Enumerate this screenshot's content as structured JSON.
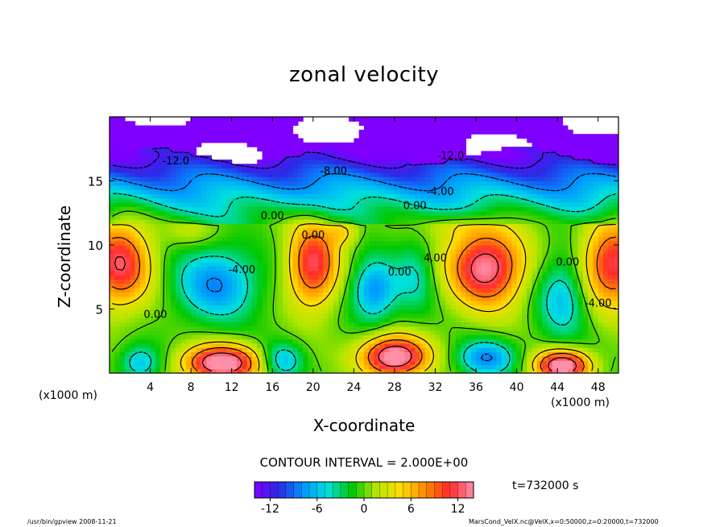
{
  "chart_data": {
    "type": "heatmap",
    "title": "zonal velocity",
    "xlabel": "X-coordinate",
    "ylabel": "Z-coordinate",
    "x_unit_left": "(x1000 m)",
    "x_unit_right": "(x1000 m)",
    "xlim": [
      0,
      50
    ],
    "ylim": [
      0,
      20
    ],
    "x_ticks": [
      4,
      8,
      12,
      16,
      20,
      24,
      28,
      32,
      36,
      40,
      44,
      48
    ],
    "y_ticks": [
      5,
      10,
      15
    ],
    "contour_interval_text": "CONTOUR INTERVAL = 2.000E+00",
    "time_text": "t=732000 s",
    "colorbar": {
      "min": -14,
      "max": 14,
      "ticks": [
        -12,
        -6,
        0,
        6,
        12
      ],
      "colors": [
        "#7f00ff",
        "#2a2ae6",
        "#0096ff",
        "#00e0e0",
        "#00c800",
        "#b4e600",
        "#ffdc00",
        "#ff8c00",
        "#ff2a2a",
        "#ff90a8"
      ]
    },
    "contour_labels": [
      {
        "text": "-12.0",
        "x": 6.5,
        "y": 16.3
      },
      {
        "text": "-12.0",
        "x": 33.5,
        "y": 16.7
      },
      {
        "text": "-8.00",
        "x": 22,
        "y": 15.5
      },
      {
        "text": "-4.00",
        "x": 32.5,
        "y": 13.9
      },
      {
        "text": "0.00",
        "x": 30,
        "y": 12.8
      },
      {
        "text": "0.00",
        "x": 16,
        "y": 12.0
      },
      {
        "text": "0.00",
        "x": 20,
        "y": 10.5
      },
      {
        "text": "-4.00",
        "x": 13,
        "y": 7.8
      },
      {
        "text": "4.00",
        "x": 32,
        "y": 8.7
      },
      {
        "text": "0.00",
        "x": 28.5,
        "y": 7.6
      },
      {
        "text": "0.00",
        "x": 45,
        "y": 8.4
      },
      {
        "text": "-4.00",
        "x": 48,
        "y": 5.2
      },
      {
        "text": "0.00",
        "x": 4.5,
        "y": 4.3
      }
    ],
    "features": [
      {
        "x": 1,
        "z": 8.5,
        "value": 12,
        "sx": 3.0,
        "sz": 3.2
      },
      {
        "x": 49.5,
        "z": 8.5,
        "value": 12,
        "sx": 3.0,
        "sz": 3.2
      },
      {
        "x": 10.5,
        "z": 7,
        "value": -8,
        "sx": 4.0,
        "sz": 2.8
      },
      {
        "x": 20,
        "z": 8.5,
        "value": 12,
        "sx": 2.4,
        "sz": 3.2
      },
      {
        "x": 37,
        "z": 8.3,
        "value": 14,
        "sx": 3.6,
        "sz": 3.0
      },
      {
        "x": 26,
        "z": 6.5,
        "value": -8,
        "sx": 2.2,
        "sz": 2.4
      },
      {
        "x": 30,
        "z": 7.5,
        "value": -4,
        "sx": 2.0,
        "sz": 3.0
      },
      {
        "x": 44.5,
        "z": 6,
        "value": -6,
        "sx": 2.5,
        "sz": 3.2
      },
      {
        "x": 11,
        "z": 0.8,
        "value": 16,
        "sx": 3.6,
        "sz": 1.4
      },
      {
        "x": 28,
        "z": 1.3,
        "value": 16,
        "sx": 3.2,
        "sz": 1.6
      },
      {
        "x": 44.5,
        "z": 0.6,
        "value": 16,
        "sx": 2.6,
        "sz": 1.2
      },
      {
        "x": 37,
        "z": 1.2,
        "value": -8,
        "sx": 2.8,
        "sz": 1.4
      },
      {
        "x": 17,
        "z": 1.0,
        "value": -6,
        "sx": 2.0,
        "sz": 1.4
      },
      {
        "x": 3,
        "z": 0.8,
        "value": -6,
        "sx": 2.0,
        "sz": 1.4
      },
      {
        "x": 8,
        "z": 11,
        "value": 2,
        "sx": 2.6,
        "sz": 1.2
      },
      {
        "x": 23,
        "z": 11,
        "value": 4,
        "sx": 1.5,
        "sz": 1.0
      },
      {
        "x": 34,
        "z": 11.5,
        "value": 2,
        "sx": 3.0,
        "sz": 1.0
      }
    ],
    "upper_layer": {
      "z_top": 17,
      "z_bottom": 14,
      "value_top": -13,
      "value_bottom": -4
    }
  },
  "footer": {
    "left": "/usr/bin/gpview   2008-11-21",
    "right": "MarsCond_VelX.nc@VelX,x=0:50000,z=0:20000,t=732000"
  }
}
